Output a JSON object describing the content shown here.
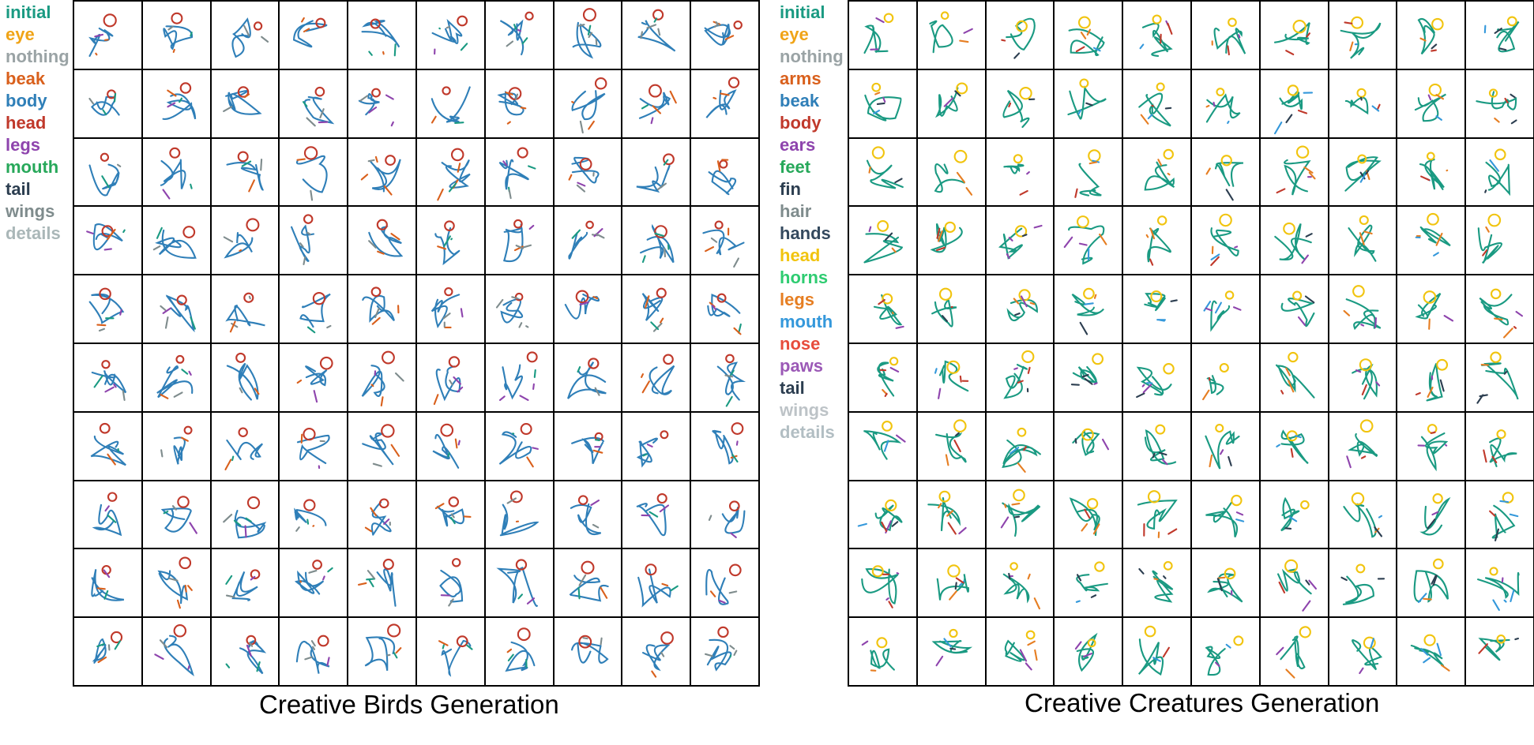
{
  "birds": {
    "caption": "Creative Birds Generation",
    "legend": [
      {
        "label": "initial",
        "color": "#1a9a82"
      },
      {
        "label": "eye",
        "color": "#f0a417"
      },
      {
        "label": "nothing",
        "color": "#9aa3a5"
      },
      {
        "label": "beak",
        "color": "#d9601c"
      },
      {
        "label": "body",
        "color": "#2f7fb8"
      },
      {
        "label": "head",
        "color": "#c0392b"
      },
      {
        "label": "legs",
        "color": "#8e44ad"
      },
      {
        "label": "mouth",
        "color": "#27a85a"
      },
      {
        "label": "tail",
        "color": "#2c3e50"
      },
      {
        "label": "wings",
        "color": "#7f8c8d"
      },
      {
        "label": "details",
        "color": "#aab7b8"
      }
    ]
  },
  "creatures": {
    "caption": "Creative Creatures Generation",
    "legend": [
      {
        "label": "initial",
        "color": "#1a9a82"
      },
      {
        "label": "eye",
        "color": "#f0a417"
      },
      {
        "label": "nothing",
        "color": "#9aa3a5"
      },
      {
        "label": "arms",
        "color": "#d9601c"
      },
      {
        "label": "beak",
        "color": "#2f7fb8"
      },
      {
        "label": "body",
        "color": "#c0392b"
      },
      {
        "label": "ears",
        "color": "#8e44ad"
      },
      {
        "label": "feet",
        "color": "#27a85a"
      },
      {
        "label": "fin",
        "color": "#2c3e50"
      },
      {
        "label": "hair",
        "color": "#7f8c8d"
      },
      {
        "label": "hands",
        "color": "#34495e"
      },
      {
        "label": "head",
        "color": "#f1c40f"
      },
      {
        "label": "horns",
        "color": "#2ecc71"
      },
      {
        "label": "legs",
        "color": "#e67e22"
      },
      {
        "label": "mouth",
        "color": "#3498db"
      },
      {
        "label": "nose",
        "color": "#e74c3c"
      },
      {
        "label": "paws",
        "color": "#9b59b6"
      },
      {
        "label": "tail",
        "color": "#2c3e50"
      },
      {
        "label": "wings",
        "color": "#bdc3c7"
      },
      {
        "label": "details",
        "color": "#b2bec3"
      }
    ]
  }
}
